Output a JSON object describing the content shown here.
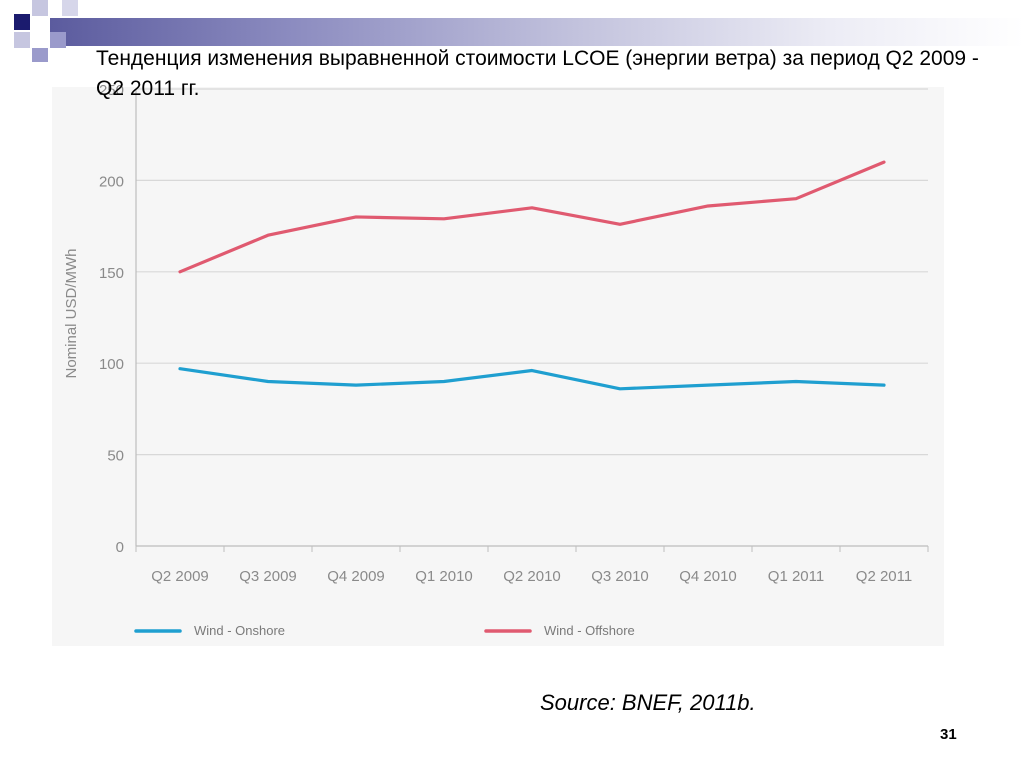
{
  "title": "Тенденция изменения выравненной стоимости LCOE (энергии ветра) за период Q2 2009 -Q2 2011 гг.",
  "source": "Source: BNEF, 2011b.",
  "page_number": "31",
  "colors": {
    "onshore": "#1f9fd0",
    "offshore": "#e05a70",
    "grid": "#d8d8d8"
  },
  "chart_data": {
    "type": "line",
    "categories": [
      "Q2 2009",
      "Q3 2009",
      "Q4 2009",
      "Q1 2010",
      "Q2 2010",
      "Q3 2010",
      "Q4 2010",
      "Q1 2011",
      "Q2 2011"
    ],
    "series": [
      {
        "name": "Wind - Onshore",
        "values": [
          97,
          90,
          88,
          90,
          96,
          86,
          88,
          90,
          88
        ]
      },
      {
        "name": "Wind - Offshore",
        "values": [
          150,
          170,
          180,
          179,
          185,
          176,
          186,
          190,
          210
        ]
      }
    ],
    "ylabel": "Nominal USD/MWh",
    "ylim": [
      0,
      250
    ],
    "yticks": [
      "0",
      "50",
      "100",
      "150",
      "200",
      "250"
    ],
    "grid": true,
    "legend": "bottom"
  }
}
